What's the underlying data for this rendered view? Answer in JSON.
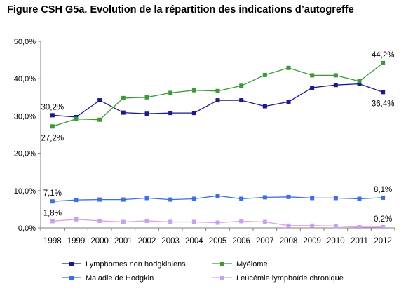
{
  "chart_data": {
    "type": "line",
    "title": "Figure CSH G5a. Evolution de la répartition des indications d’autogreffe",
    "xlabel": "",
    "ylabel": "",
    "categories": [
      "1998",
      "1999",
      "2000",
      "2001",
      "2002",
      "2003",
      "2004",
      "2005",
      "2006",
      "2007",
      "2008",
      "2009",
      "2010",
      "2011",
      "2012"
    ],
    "ylim": [
      0,
      50
    ],
    "yticks": [
      0,
      10,
      20,
      30,
      40,
      50
    ],
    "ytick_labels": [
      "0,0%",
      "10,0%",
      "20,0%",
      "30,0%",
      "40,0%",
      "50,0%"
    ],
    "grid": false,
    "legend_position": "bottom",
    "series": [
      {
        "name": "Lymphomes non hodgkiniens",
        "color": "#1a1a8c",
        "marker_color": "#1a1a8c",
        "values": [
          30.2,
          29.7,
          34.2,
          30.9,
          30.6,
          30.8,
          30.8,
          34.2,
          34.2,
          32.6,
          33.8,
          37.6,
          38.3,
          38.6,
          36.4
        ],
        "labels": [
          {
            "index": 0,
            "text": "30,2%",
            "pos": "above"
          },
          {
            "index": 14,
            "text": "36,4%",
            "pos": "below"
          }
        ]
      },
      {
        "name": "Myélome",
        "color": "#3a9a3a",
        "marker_color": "#3a9a3a",
        "values": [
          27.2,
          29.2,
          29.0,
          34.8,
          35.0,
          36.2,
          36.9,
          36.7,
          38.1,
          41.0,
          42.9,
          40.9,
          40.9,
          39.3,
          44.2
        ],
        "labels": [
          {
            "index": 0,
            "text": "27,2%",
            "pos": "below"
          },
          {
            "index": 14,
            "text": "44,2%",
            "pos": "above"
          }
        ]
      },
      {
        "name": "Maladie de Hodgkin",
        "color": "#3c6fe0",
        "marker_color": "#3c6fe0",
        "values": [
          7.1,
          7.5,
          7.6,
          7.6,
          8.0,
          7.6,
          7.8,
          8.6,
          7.8,
          8.2,
          8.3,
          8.0,
          8.0,
          7.8,
          8.1
        ],
        "labels": [
          {
            "index": 0,
            "text": "7,1%",
            "pos": "above"
          },
          {
            "index": 14,
            "text": "8,1%",
            "pos": "above"
          }
        ]
      },
      {
        "name": "Leucémie lymphoïde chronique",
        "color": "#dda0e8",
        "marker_color": "#c8a0f0",
        "values": [
          1.8,
          2.3,
          1.9,
          1.6,
          1.9,
          1.6,
          1.6,
          1.4,
          1.8,
          1.6,
          0.6,
          0.6,
          0.5,
          0.2,
          0.2
        ],
        "labels": [
          {
            "index": 0,
            "text": "1,8%",
            "pos": "above"
          },
          {
            "index": 14,
            "text": "0,2%",
            "pos": "above"
          }
        ]
      }
    ]
  }
}
